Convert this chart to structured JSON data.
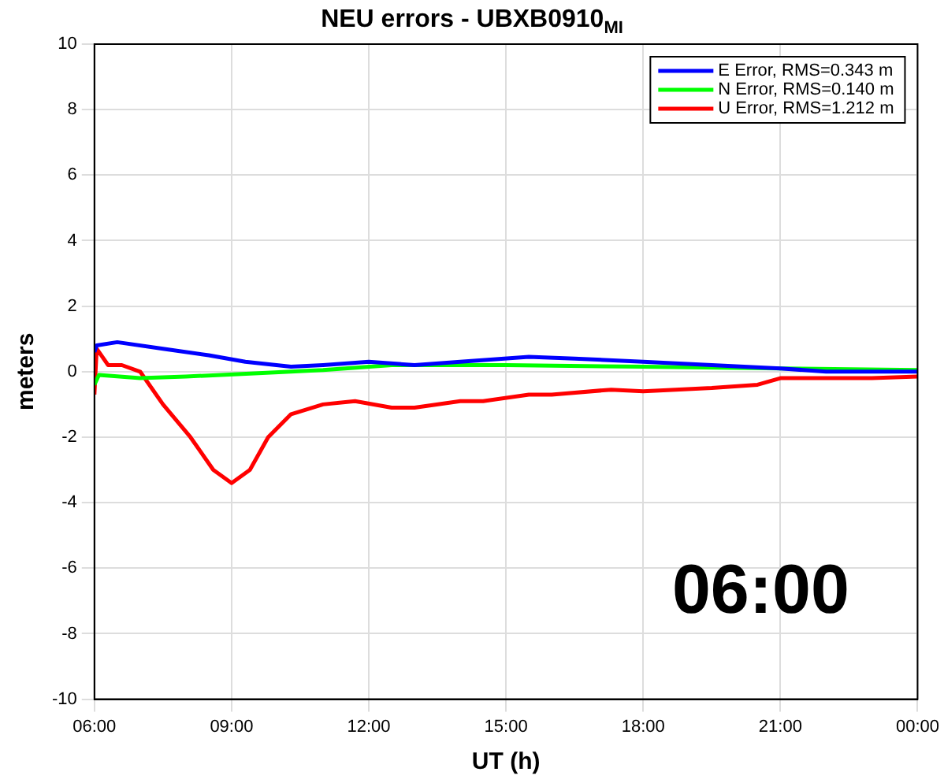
{
  "chart_data": {
    "type": "line",
    "title": "NEU errors - UBXB0910$_{MI}$",
    "xlabel": "UT (h)",
    "ylabel": "meters",
    "xlim": [
      6,
      24
    ],
    "xticks": [
      {
        "value": 6,
        "label": "06:00"
      },
      {
        "value": 9,
        "label": "09:00"
      },
      {
        "value": 12,
        "label": "12:00"
      },
      {
        "value": 15,
        "label": "15:00"
      },
      {
        "value": 18,
        "label": "18:00"
      },
      {
        "value": 21,
        "label": "21:00"
      },
      {
        "value": 24,
        "label": "00:00"
      }
    ],
    "ylim": [
      -10,
      10
    ],
    "yticks": [
      -10,
      -8,
      -6,
      -4,
      -2,
      0,
      2,
      4,
      6,
      8,
      10
    ],
    "grid": true,
    "legend": "top right",
    "marker": "none",
    "line_style": "solid",
    "annotations": [
      "06:00"
    ],
    "series": [
      {
        "name": "E Error, RMS=0.343 m",
        "color": "#0000ff",
        "x": [
          6,
          6.05,
          6.5,
          7.5,
          8.5,
          9.3,
          10.3,
          11,
          12,
          13,
          14,
          15.5,
          16.5,
          18,
          19.5,
          21,
          22,
          24
        ],
        "values": [
          0.6,
          0.8,
          0.9,
          0.7,
          0.5,
          0.3,
          0.15,
          0.2,
          0.3,
          0.2,
          0.3,
          0.45,
          0.4,
          0.3,
          0.2,
          0.1,
          0,
          0
        ]
      },
      {
        "name": "N Error, RMS=0.140 m",
        "color": "#00ff00",
        "x": [
          6,
          6.1,
          7,
          8,
          9.5,
          11,
          12.5,
          15,
          18,
          21,
          24
        ],
        "values": [
          -0.4,
          -0.1,
          -0.2,
          -0.15,
          -0.05,
          0.05,
          0.2,
          0.2,
          0.15,
          0.1,
          0.05
        ]
      },
      {
        "name": "U Error, RMS=1.212 m",
        "color": "#ff0000",
        "x": [
          6,
          6.05,
          6.3,
          6.6,
          7,
          7.5,
          8.1,
          8.6,
          9,
          9.4,
          9.8,
          10.3,
          11,
          11.7,
          12.5,
          13,
          14,
          14.5,
          15.5,
          16,
          17.3,
          18,
          19.5,
          20.5,
          21,
          22,
          23,
          24
        ],
        "values": [
          -0.7,
          0.7,
          0.2,
          0.2,
          0,
          -1,
          -2,
          -3,
          -3.4,
          -3,
          -2,
          -1.3,
          -1,
          -0.9,
          -1.1,
          -1.1,
          -0.9,
          -0.9,
          -0.7,
          -0.7,
          -0.55,
          -0.6,
          -0.5,
          -0.4,
          -0.2,
          -0.2,
          -0.2,
          -0.15
        ]
      }
    ]
  }
}
